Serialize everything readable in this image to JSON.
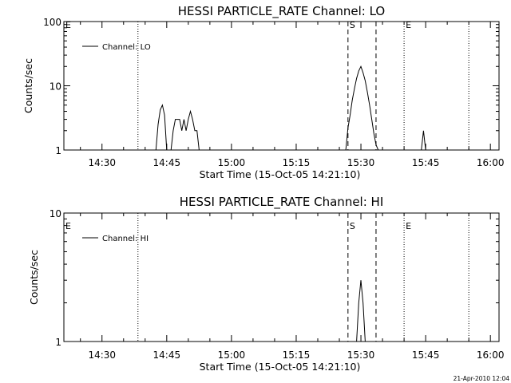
{
  "footer": {
    "timestamp": "21-Apr-2010 12:04"
  },
  "chart_data": [
    {
      "type": "line",
      "title": "HESSI PARTICLE_RATE Channel: LO",
      "xlabel": "Start Time (15-Oct-05 14:21:10)",
      "ylabel": "Counts/sec",
      "xlim": [
        "14:21:10",
        "16:02:00"
      ],
      "ylim": [
        1,
        100
      ],
      "yscale": "log",
      "x_ticks": [
        "14:30",
        "14:45",
        "15:00",
        "15:15",
        "15:30",
        "15:45",
        "16:00"
      ],
      "y_ticks": [
        "1",
        "10",
        "100"
      ],
      "grid": false,
      "legend": {
        "position": "top-left",
        "entries": [
          "Channel: LO"
        ]
      },
      "markers": [
        {
          "label": "E",
          "time": "14:21:10",
          "style": "none"
        },
        {
          "label": "",
          "time": "14:38:20",
          "style": "dotted"
        },
        {
          "label": "S",
          "time": "15:27:00",
          "style": "dashed"
        },
        {
          "label": "",
          "time": "15:33:30",
          "style": "dashed"
        },
        {
          "label": "E",
          "time": "15:40:00",
          "style": "dotted"
        },
        {
          "label": "",
          "time": "15:55:00",
          "style": "dotted"
        }
      ],
      "series": [
        {
          "name": "Channel: LO",
          "points": [
            [
              "14:42:30",
              1
            ],
            [
              "14:43:00",
              2.5
            ],
            [
              "14:43:30",
              4.2
            ],
            [
              "14:44:00",
              5
            ],
            [
              "14:44:30",
              3.5
            ],
            [
              "14:45:00",
              1
            ],
            [
              "14:46:00",
              1
            ],
            [
              "14:46:30",
              2
            ],
            [
              "14:47:00",
              3
            ],
            [
              "14:48:00",
              3
            ],
            [
              "14:48:30",
              2
            ],
            [
              "14:49:00",
              3
            ],
            [
              "14:49:30",
              2
            ],
            [
              "14:50:00",
              3
            ],
            [
              "14:50:30",
              4
            ],
            [
              "14:51:00",
              3
            ],
            [
              "14:51:30",
              2
            ],
            [
              "14:52:00",
              2
            ],
            [
              "14:52:30",
              1
            ],
            [
              "15:26:30",
              1
            ],
            [
              "15:27:00",
              2.2
            ],
            [
              "15:27:30",
              3.5
            ],
            [
              "15:28:00",
              6
            ],
            [
              "15:28:30",
              9
            ],
            [
              "15:29:00",
              13
            ],
            [
              "15:29:30",
              17
            ],
            [
              "15:30:00",
              20
            ],
            [
              "15:30:30",
              16
            ],
            [
              "15:31:00",
              12
            ],
            [
              "15:31:30",
              8
            ],
            [
              "15:32:00",
              5
            ],
            [
              "15:32:30",
              3
            ],
            [
              "15:33:00",
              1.8
            ],
            [
              "15:33:30",
              1.2
            ],
            [
              "15:34:00",
              1
            ],
            [
              "15:44:00",
              1
            ],
            [
              "15:44:30",
              2
            ],
            [
              "15:45:00",
              1
            ]
          ]
        }
      ]
    },
    {
      "type": "line",
      "title": "HESSI PARTICLE_RATE Channel: HI",
      "xlabel": "Start Time (15-Oct-05 14:21:10)",
      "ylabel": "Counts/sec",
      "xlim": [
        "14:21:10",
        "16:02:00"
      ],
      "ylim": [
        1,
        10
      ],
      "yscale": "log",
      "x_ticks": [
        "14:30",
        "14:45",
        "15:00",
        "15:15",
        "15:30",
        "15:45",
        "16:00"
      ],
      "y_ticks": [
        "1",
        "10"
      ],
      "grid": false,
      "legend": {
        "position": "top-left",
        "entries": [
          "Channel: HI"
        ]
      },
      "markers": [
        {
          "label": "E",
          "time": "14:21:10",
          "style": "none"
        },
        {
          "label": "",
          "time": "14:38:20",
          "style": "dotted"
        },
        {
          "label": "S",
          "time": "15:27:00",
          "style": "dashed"
        },
        {
          "label": "",
          "time": "15:33:30",
          "style": "dashed"
        },
        {
          "label": "E",
          "time": "15:40:00",
          "style": "dotted"
        },
        {
          "label": "",
          "time": "15:55:00",
          "style": "dotted"
        }
      ],
      "series": [
        {
          "name": "Channel: HI",
          "points": [
            [
              "15:29:00",
              1
            ],
            [
              "15:29:30",
              2
            ],
            [
              "15:30:00",
              3
            ],
            [
              "15:30:30",
              2
            ],
            [
              "15:31:00",
              1
            ]
          ]
        }
      ]
    }
  ]
}
